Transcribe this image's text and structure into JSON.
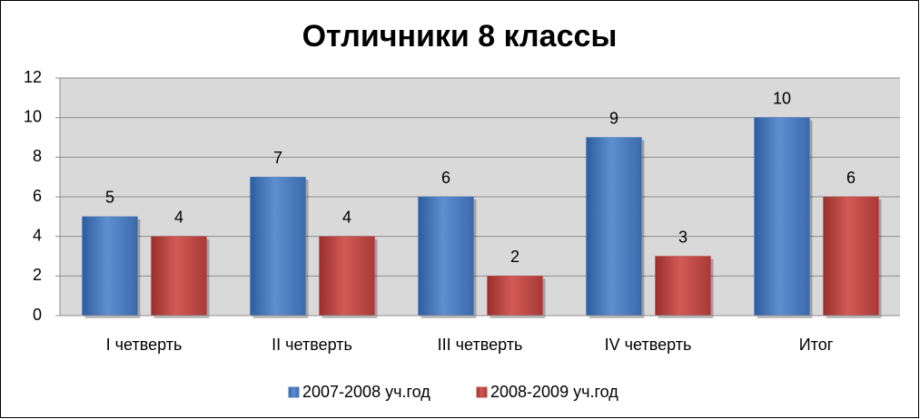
{
  "chart_data": {
    "type": "bar",
    "title": "Отличники 8 классы",
    "categories": [
      "I четверть",
      "II четверть",
      "III четверть",
      "IV четверть",
      "Итог"
    ],
    "series": [
      {
        "name": "2007-2008 уч.год",
        "color": "#4a7ebb",
        "values": [
          5,
          7,
          6,
          9,
          10
        ]
      },
      {
        "name": "2008-2009 уч.год",
        "color": "#be4b48",
        "values": [
          4,
          4,
          2,
          3,
          6
        ]
      }
    ],
    "ylim": [
      0,
      12
    ],
    "yticks": [
      0,
      2,
      4,
      6,
      8,
      10,
      12
    ],
    "grid": true,
    "legend": "bottom"
  }
}
